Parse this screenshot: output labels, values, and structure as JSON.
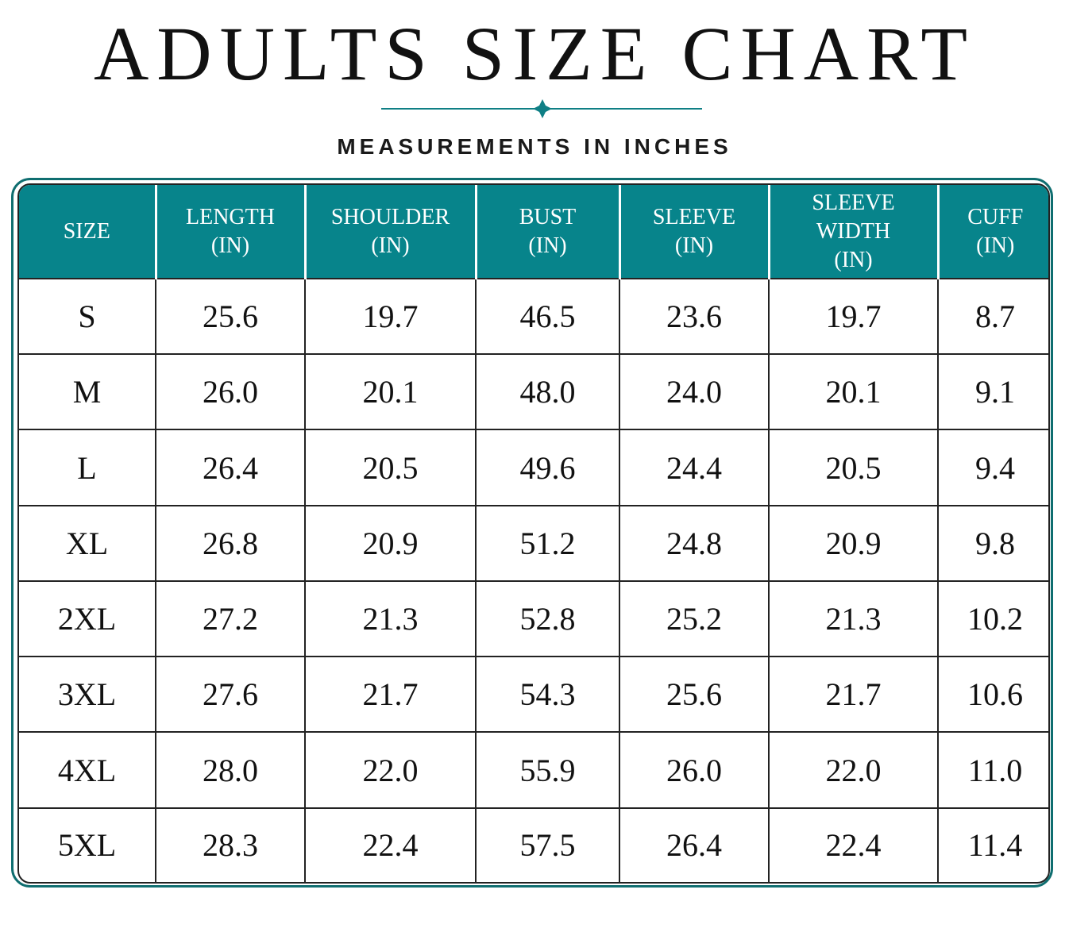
{
  "title": "ADULTS SIZE CHART",
  "subtitle": "MEASUREMENTS IN INCHES",
  "colors": {
    "header_bg": "#07848b",
    "accent": "#0f6e70",
    "text": "#111111"
  },
  "icons": {
    "divider": "sparkle-divider-icon"
  },
  "table": {
    "headers": [
      {
        "line1": "SIZE",
        "line2": ""
      },
      {
        "line1": "LENGTH",
        "line2": "(IN)"
      },
      {
        "line1": "SHOULDER",
        "line2": "(IN)"
      },
      {
        "line1": "BUST",
        "line2": "(IN)"
      },
      {
        "line1": "SLEEVE",
        "line2": "(IN)"
      },
      {
        "line1": "SLEEVE WIDTH",
        "line2": "(IN)"
      },
      {
        "line1": "CUFF",
        "line2": "(IN)"
      }
    ],
    "rows": [
      [
        "S",
        "25.6",
        "19.7",
        "46.5",
        "23.6",
        "19.7",
        "8.7"
      ],
      [
        "M",
        "26.0",
        "20.1",
        "48.0",
        "24.0",
        "20.1",
        "9.1"
      ],
      [
        "L",
        "26.4",
        "20.5",
        "49.6",
        "24.4",
        "20.5",
        "9.4"
      ],
      [
        "XL",
        "26.8",
        "20.9",
        "51.2",
        "24.8",
        "20.9",
        "9.8"
      ],
      [
        "2XL",
        "27.2",
        "21.3",
        "52.8",
        "25.2",
        "21.3",
        "10.2"
      ],
      [
        "3XL",
        "27.6",
        "21.7",
        "54.3",
        "25.6",
        "21.7",
        "10.6"
      ],
      [
        "4XL",
        "28.0",
        "22.0",
        "55.9",
        "26.0",
        "22.0",
        "11.0"
      ],
      [
        "5XL",
        "28.3",
        "22.4",
        "57.5",
        "26.4",
        "22.4",
        "11.4"
      ]
    ]
  }
}
